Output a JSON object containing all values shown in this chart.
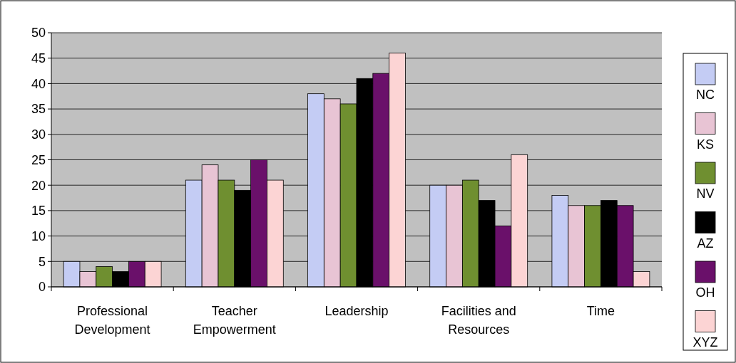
{
  "chart_data": {
    "type": "bar",
    "categories": [
      "Professional Development",
      "Teacher Empowerment",
      "Leadership",
      "Facilities and Resources",
      "Time"
    ],
    "series": [
      {
        "name": "NC",
        "color": "#c4ccf4",
        "values": [
          5,
          21,
          38,
          20,
          18
        ]
      },
      {
        "name": "KS",
        "color": "#e8c4d4",
        "values": [
          3,
          24,
          37,
          20,
          16
        ]
      },
      {
        "name": "NV",
        "color": "#6f8f30",
        "values": [
          4,
          21,
          36,
          21,
          16
        ]
      },
      {
        "name": "AZ",
        "color": "#000000",
        "values": [
          3,
          19,
          41,
          17,
          17
        ]
      },
      {
        "name": "OH",
        "color": "#6a106a",
        "values": [
          5,
          25,
          42,
          12,
          16
        ]
      },
      {
        "name": "XYZ",
        "color": "#fcd4d4",
        "values": [
          5,
          21,
          46,
          26,
          3
        ]
      }
    ],
    "ylim": [
      0,
      50
    ],
    "yticks": [
      0,
      5,
      10,
      15,
      20,
      25,
      30,
      35,
      40,
      45,
      50
    ],
    "grid": "y",
    "legend": "right"
  }
}
